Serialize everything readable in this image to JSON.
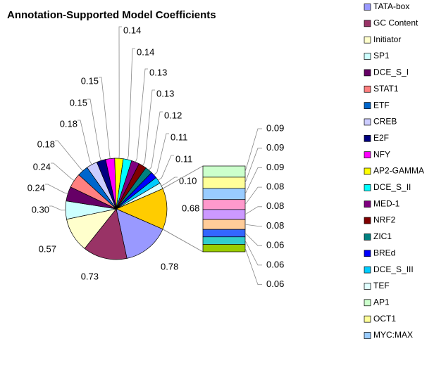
{
  "chart_data": {
    "type": "pie-of-bar",
    "title": "Annotation-Supported Model Coefficients",
    "categories": [
      "TATA-box",
      "GC Content",
      "Initiator",
      "SP1",
      "DCE_S_I",
      "STAT1",
      "ETF",
      "CREB",
      "E2F",
      "NFY",
      "AP2-GAMMA",
      "DCE_S_II",
      "MED-1",
      "NRF2",
      "ZIC1",
      "BREd",
      "DCE_S_III",
      "TEF"
    ],
    "values": [
      0.78,
      0.73,
      0.57,
      0.3,
      0.24,
      0.24,
      0.18,
      0.18,
      0.15,
      0.15,
      0.14,
      0.14,
      0.13,
      0.13,
      0.12,
      0.11,
      0.11,
      0.1
    ],
    "value_labels": [
      "0.78",
      "0.73",
      "0.57",
      "0.30",
      "0.24",
      "0.24",
      "0.18",
      "0.18",
      "0.15",
      "0.15",
      "0.14",
      "0.14",
      "0.13",
      "0.13",
      "0.12",
      "0.11",
      "0.11",
      "0.10"
    ],
    "colors": [
      "#9999ff",
      "#993366",
      "#ffffcc",
      "#ccffff",
      "#660066",
      "#ff8080",
      "#0066cc",
      "#ccccff",
      "#000080",
      "#ff00ff",
      "#ffff00",
      "#00ffff",
      "#800080",
      "#800000",
      "#008080",
      "#0000ff",
      "#00ccff",
      "#e0ffff"
    ],
    "other": {
      "value": 0.68,
      "color": "#ffcc00"
    },
    "bar": {
      "categories": [
        "AP1",
        "OCT1",
        "MYC:MAX",
        null,
        null,
        null,
        null,
        null,
        null
      ],
      "values": [
        0.09,
        0.09,
        0.09,
        0.08,
        0.08,
        0.08,
        0.06,
        0.06,
        0.06
      ],
      "colors": [
        "#ccffcc",
        "#ffff99",
        "#99ccff",
        "#ff99cc",
        "#cc99ff",
        "#ffcc99",
        "#3366ff",
        "#33cccc",
        "#99cc00"
      ]
    }
  }
}
